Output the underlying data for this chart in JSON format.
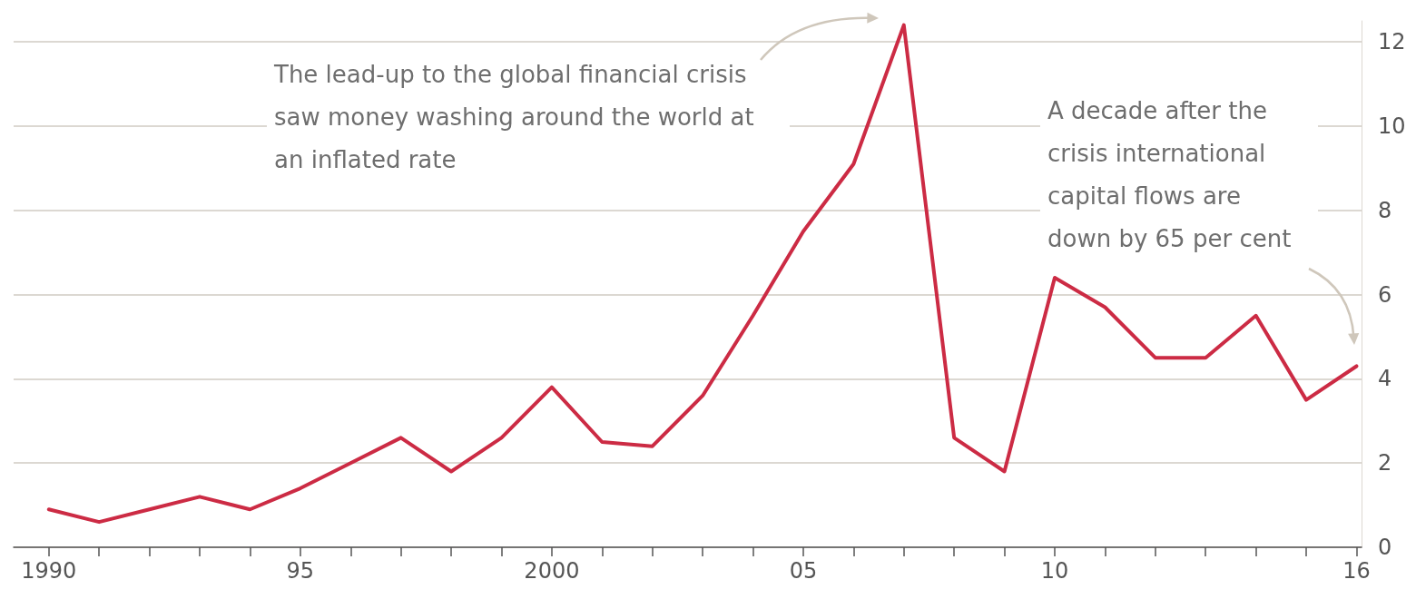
{
  "chart_data": {
    "type": "line",
    "x": [
      1990,
      1991,
      1992,
      1993,
      1994,
      1995,
      1996,
      1997,
      1998,
      1999,
      2000,
      2001,
      2002,
      2003,
      2004,
      2005,
      2006,
      2007,
      2008,
      2009,
      2010,
      2011,
      2012,
      2013,
      2014,
      2015,
      2016
    ],
    "series": [
      {
        "color": "#cc2b44",
        "values": [
          0.9,
          0.6,
          0.9,
          1.2,
          0.9,
          1.4,
          2.0,
          2.6,
          1.8,
          2.6,
          3.8,
          2.5,
          2.4,
          3.6,
          5.5,
          7.5,
          9.1,
          12.4,
          2.6,
          1.8,
          6.4,
          5.7,
          4.5,
          4.5,
          5.5,
          3.5,
          4.3
        ]
      }
    ],
    "xlim": [
      1989.3,
      2016.1
    ],
    "xticks": [
      {
        "value": 1990,
        "label": "1990"
      },
      {
        "value": 1991,
        "label": null
      },
      {
        "value": 1992,
        "label": null
      },
      {
        "value": 1993,
        "label": null
      },
      {
        "value": 1994,
        "label": null
      },
      {
        "value": 1995,
        "label": "95"
      },
      {
        "value": 1996,
        "label": null
      },
      {
        "value": 1997,
        "label": null
      },
      {
        "value": 1998,
        "label": null
      },
      {
        "value": 1999,
        "label": null
      },
      {
        "value": 2000,
        "label": "2000"
      },
      {
        "value": 2001,
        "label": null
      },
      {
        "value": 2002,
        "label": null
      },
      {
        "value": 2003,
        "label": null
      },
      {
        "value": 2004,
        "label": null
      },
      {
        "value": 2005,
        "label": "05"
      },
      {
        "value": 2006,
        "label": null
      },
      {
        "value": 2007,
        "label": null
      },
      {
        "value": 2008,
        "label": null
      },
      {
        "value": 2009,
        "label": null
      },
      {
        "value": 2010,
        "label": "10"
      },
      {
        "value": 2011,
        "label": null
      },
      {
        "value": 2012,
        "label": null
      },
      {
        "value": 2013,
        "label": null
      },
      {
        "value": 2014,
        "label": null
      },
      {
        "value": 2015,
        "label": null
      },
      {
        "value": 2016,
        "label": "16"
      }
    ],
    "ylim": [
      0,
      12.5
    ],
    "yticks": [
      0,
      2,
      4,
      6,
      8,
      10,
      12
    ],
    "grid": "y",
    "marker": "none",
    "line_style": "solid",
    "annotations": [
      "The lead-up to the global financial crisis saw money washing around the world at an inflated rate",
      "A decade after the crisis international capital flows are down by 65 per cent"
    ]
  }
}
